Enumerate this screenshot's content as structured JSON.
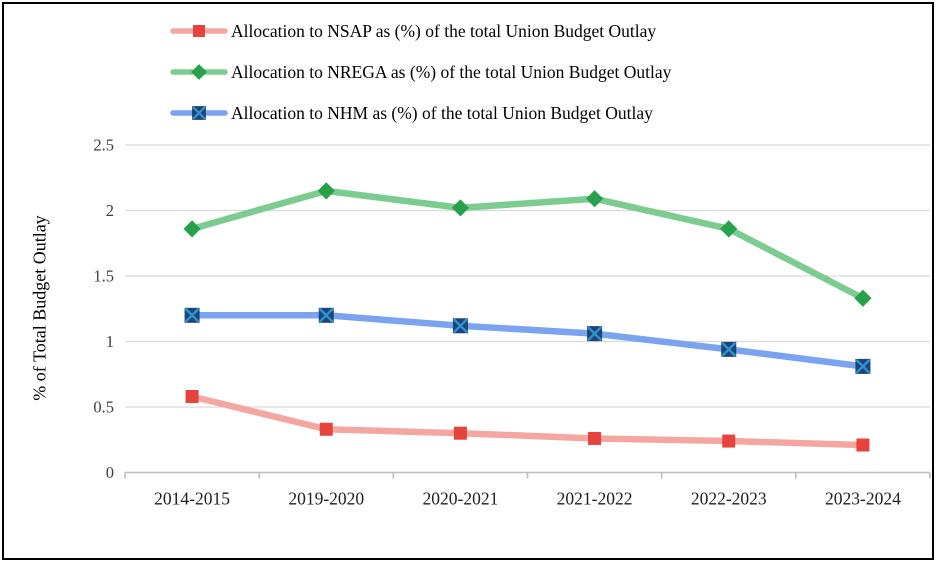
{
  "y_axis": {
    "title": "% of Total Budget Outlay",
    "tick_labels": [
      "2.5",
      "2",
      "1.5",
      "1",
      "0.5",
      "0"
    ],
    "tick_values": [
      2.5,
      2,
      1.5,
      1,
      0.5,
      0
    ]
  },
  "chart_data": {
    "type": "line",
    "title": "",
    "xlabel": "",
    "ylabel": "% of Total Budget Outlay",
    "ylim": [
      0,
      2.5
    ],
    "grid": true,
    "legend_position": "top-left",
    "categories": [
      "2014-2015",
      "2019-2020",
      "2020-2021",
      "2021-2022",
      "2022-2023",
      "2023-2024"
    ],
    "series": [
      {
        "name": "Allocation to NSAP as (%) of the total Union Budget Outlay",
        "values": [
          0.58,
          0.33,
          0.3,
          0.26,
          0.24,
          0.21
        ],
        "line_color": "#F4A7A1",
        "marker": "square",
        "marker_color": "#E8423C"
      },
      {
        "name": "Allocation to NREGA as (%) of the total Union Budget Outlay",
        "values": [
          1.86,
          2.15,
          2.02,
          2.09,
          1.86,
          1.33
        ],
        "line_color": "#7CCC90",
        "marker": "diamond",
        "marker_color": "#27A24B"
      },
      {
        "name": "Allocation to NHM as (%) of the total Union Budget Outlay",
        "values": [
          1.2,
          1.2,
          1.12,
          1.06,
          0.94,
          0.81
        ],
        "line_color": "#7AA4F0",
        "marker": "square-x",
        "marker_color": "#1B4578",
        "marker_x_color": "#2F93CE"
      }
    ]
  },
  "colors": {
    "gridline": "#D9D9D9",
    "axis_line": "#BFBFBF",
    "background": "#FFFFFF",
    "frame_border": "#000000"
  }
}
